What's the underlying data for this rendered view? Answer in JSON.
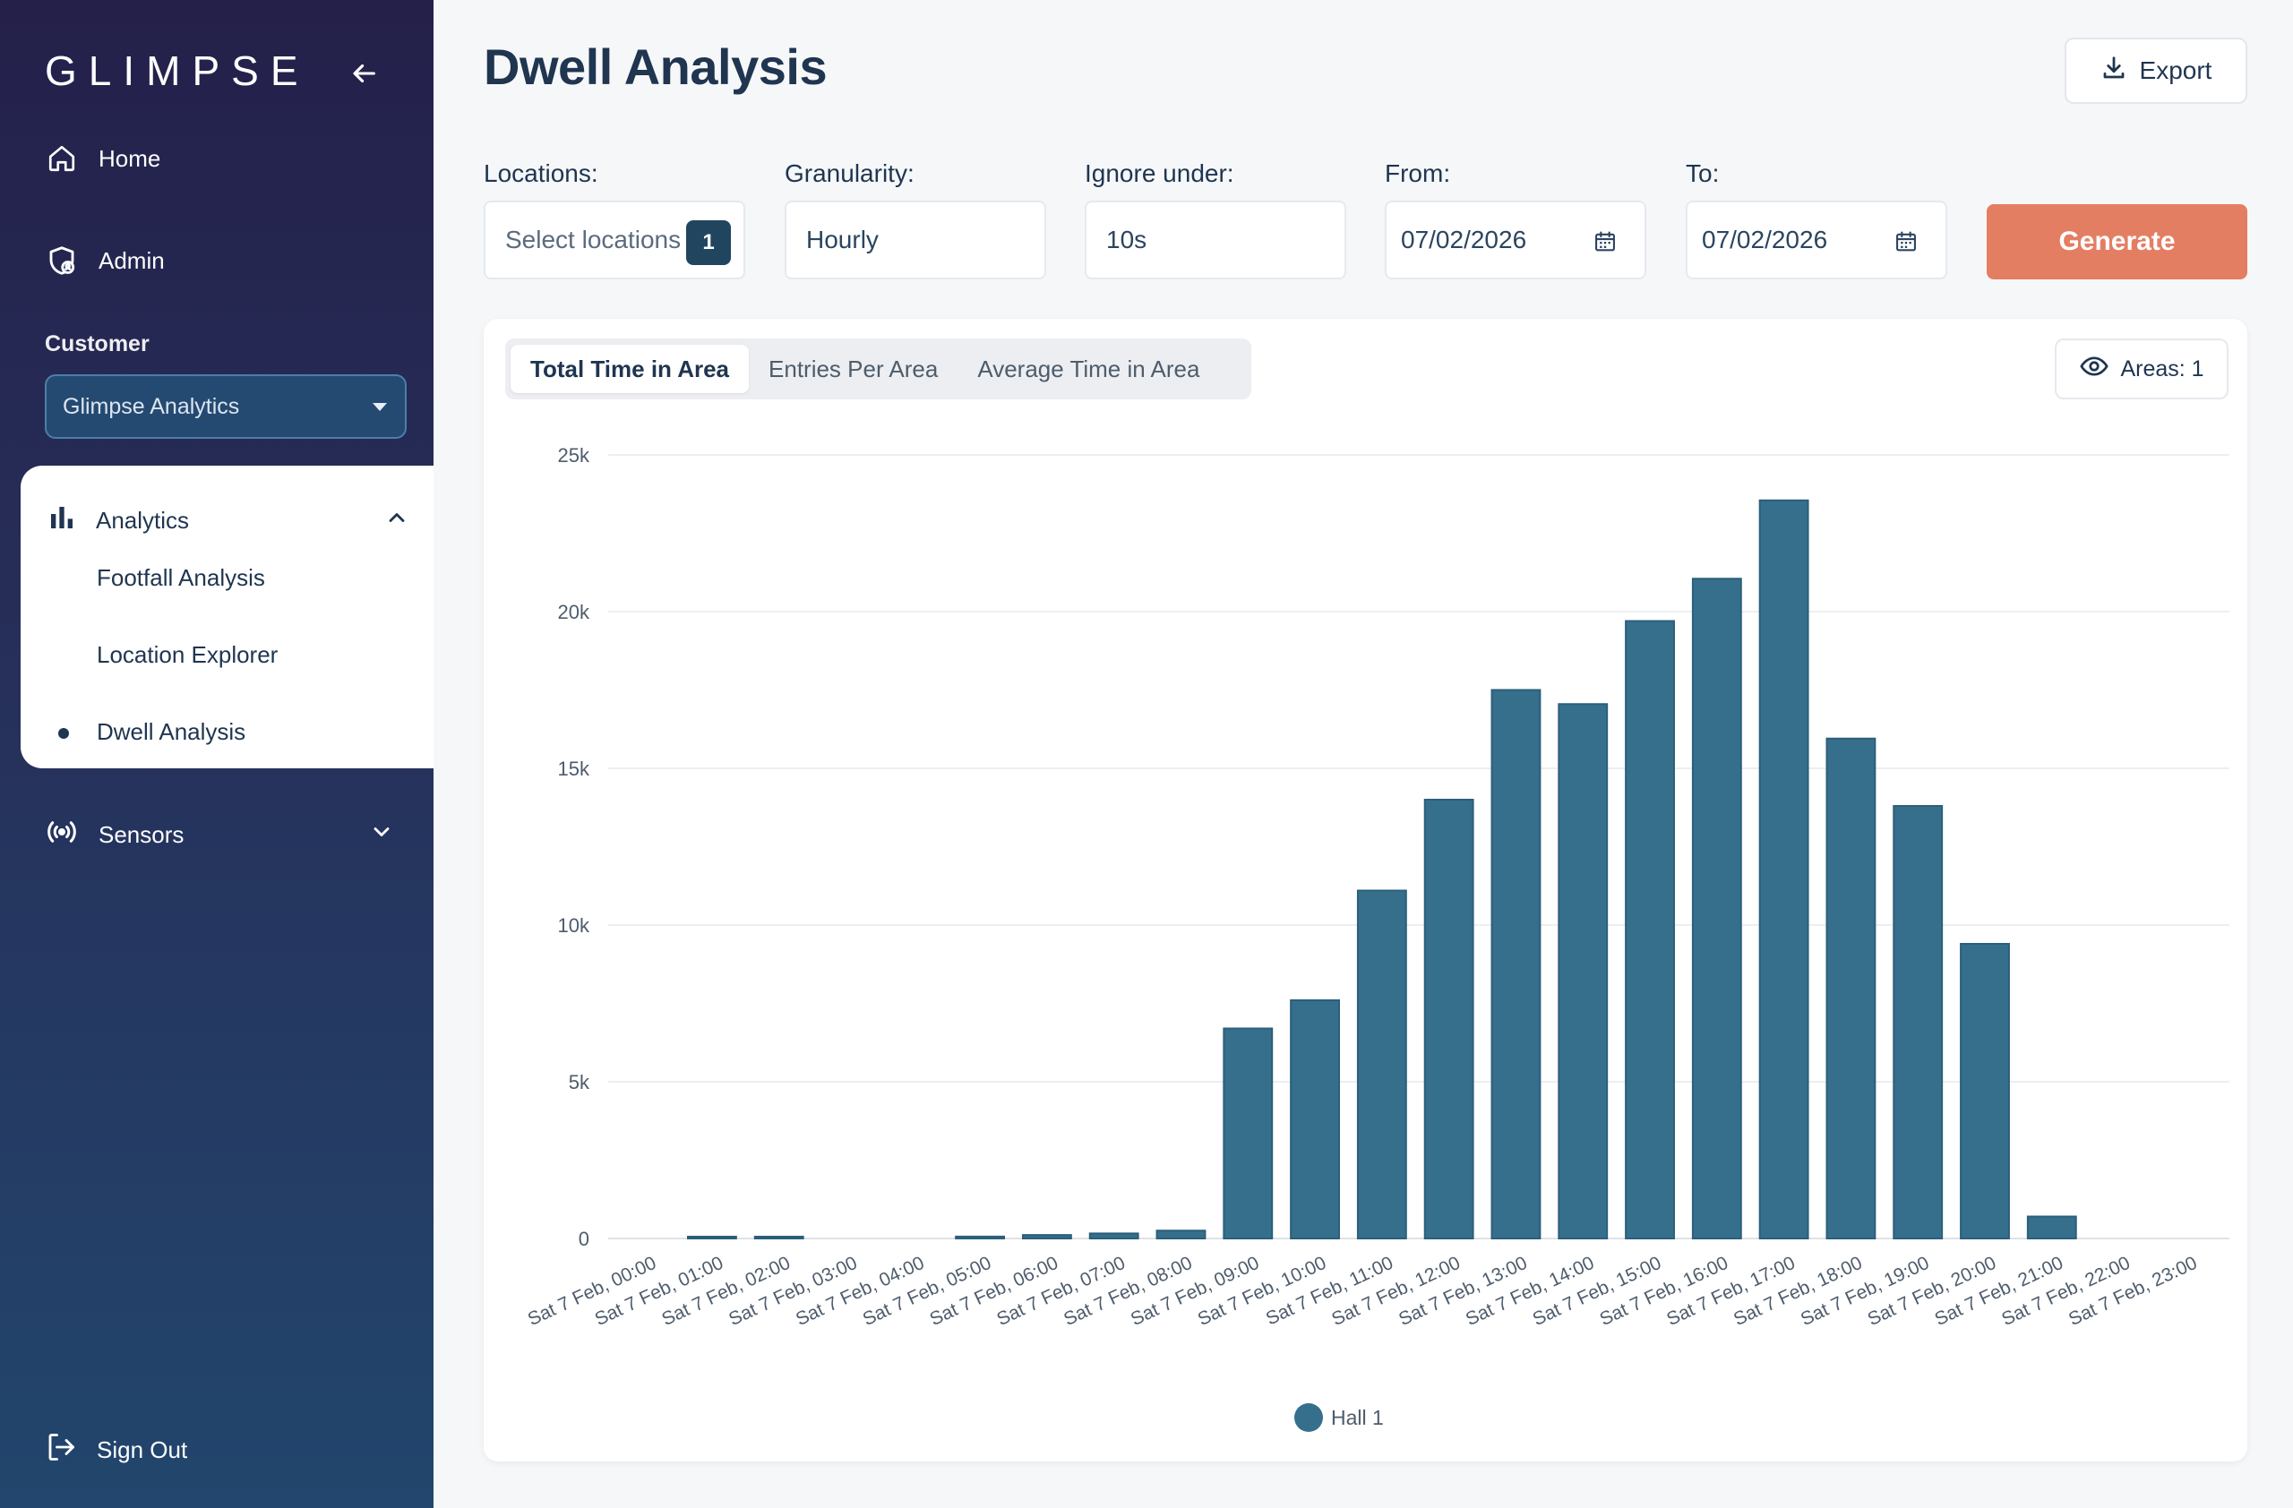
{
  "sidebar": {
    "logo": "GLIMPSE",
    "nav": {
      "home": "Home",
      "admin": "Admin"
    },
    "customer_label": "Customer",
    "customer_value": "Glimpse Analytics",
    "analytics": {
      "label": "Analytics",
      "items": [
        "Footfall Analysis",
        "Location Explorer",
        "Dwell Analysis"
      ],
      "active": "Dwell Analysis"
    },
    "sensors": "Sensors",
    "sign_out": "Sign Out"
  },
  "header": {
    "title": "Dwell Analysis",
    "export_label": "Export"
  },
  "filters": {
    "locations_label": "Locations:",
    "locations_placeholder": "Select locations",
    "locations_count": "1",
    "granularity_label": "Granularity:",
    "granularity_value": "Hourly",
    "ignore_label": "Ignore under:",
    "ignore_value": "10s",
    "from_label": "From:",
    "from_value": "07/02/2026",
    "to_label": "To:",
    "to_value": "07/02/2026",
    "generate_label": "Generate"
  },
  "tabs": [
    "Total Time in Area",
    "Entries Per Area",
    "Average Time in Area"
  ],
  "active_tab": "Total Time in Area",
  "areas_label": "Areas: 1",
  "colors": {
    "bar": "#356f8c",
    "accent": "#e47e63",
    "primary": "#1f3550"
  },
  "chart_data": {
    "type": "bar",
    "categories": [
      "Sat 7 Feb, 00:00",
      "Sat 7 Feb, 01:00",
      "Sat 7 Feb, 02:00",
      "Sat 7 Feb, 03:00",
      "Sat 7 Feb, 04:00",
      "Sat 7 Feb, 05:00",
      "Sat 7 Feb, 06:00",
      "Sat 7 Feb, 07:00",
      "Sat 7 Feb, 08:00",
      "Sat 7 Feb, 09:00",
      "Sat 7 Feb, 10:00",
      "Sat 7 Feb, 11:00",
      "Sat 7 Feb, 12:00",
      "Sat 7 Feb, 13:00",
      "Sat 7 Feb, 14:00",
      "Sat 7 Feb, 15:00",
      "Sat 7 Feb, 16:00",
      "Sat 7 Feb, 17:00",
      "Sat 7 Feb, 18:00",
      "Sat 7 Feb, 19:00",
      "Sat 7 Feb, 20:00",
      "Sat 7 Feb, 21:00",
      "Sat 7 Feb, 22:00",
      "Sat 7 Feb, 23:00"
    ],
    "series": [
      {
        "name": "Hall 1",
        "values": [
          0,
          50,
          30,
          0,
          0,
          60,
          110,
          160,
          250,
          6700,
          7600,
          11100,
          14000,
          17500,
          17050,
          19700,
          21050,
          23550,
          15950,
          13800,
          9400,
          700,
          0,
          0
        ]
      }
    ],
    "yticks": [
      "0",
      "5k",
      "10k",
      "15k",
      "20k",
      "25k"
    ],
    "ylim": [
      0,
      25000
    ],
    "grid": true,
    "legend": "bottom-center"
  }
}
